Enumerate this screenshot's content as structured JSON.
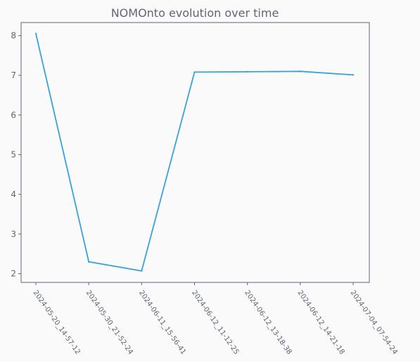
{
  "chart_data": {
    "type": "line",
    "title": "NOMOnto evolution over time",
    "xlabel": "",
    "ylabel": "",
    "categories": [
      "2024-05-20_14-57-12",
      "2024-05-30_21-52-24",
      "2024-06-11_15-56-41",
      "2024-06-12_11-12-25",
      "2024-06-12_13-18-38",
      "2024-06-12_14-21-18",
      "2024-07-04_07-54-24"
    ],
    "series": [
      {
        "values": [
          8.05,
          2.3,
          2.07,
          7.08,
          7.09,
          7.1,
          7.01
        ]
      }
    ],
    "ylim": [
      1.78,
      8.33
    ],
    "yticks": [
      2,
      3,
      4,
      5,
      6,
      7,
      8
    ],
    "grid": false,
    "legend": "none",
    "line_color": "#39a2d9",
    "axis_color": "#5f6675",
    "plot_background": "#fafafa"
  }
}
